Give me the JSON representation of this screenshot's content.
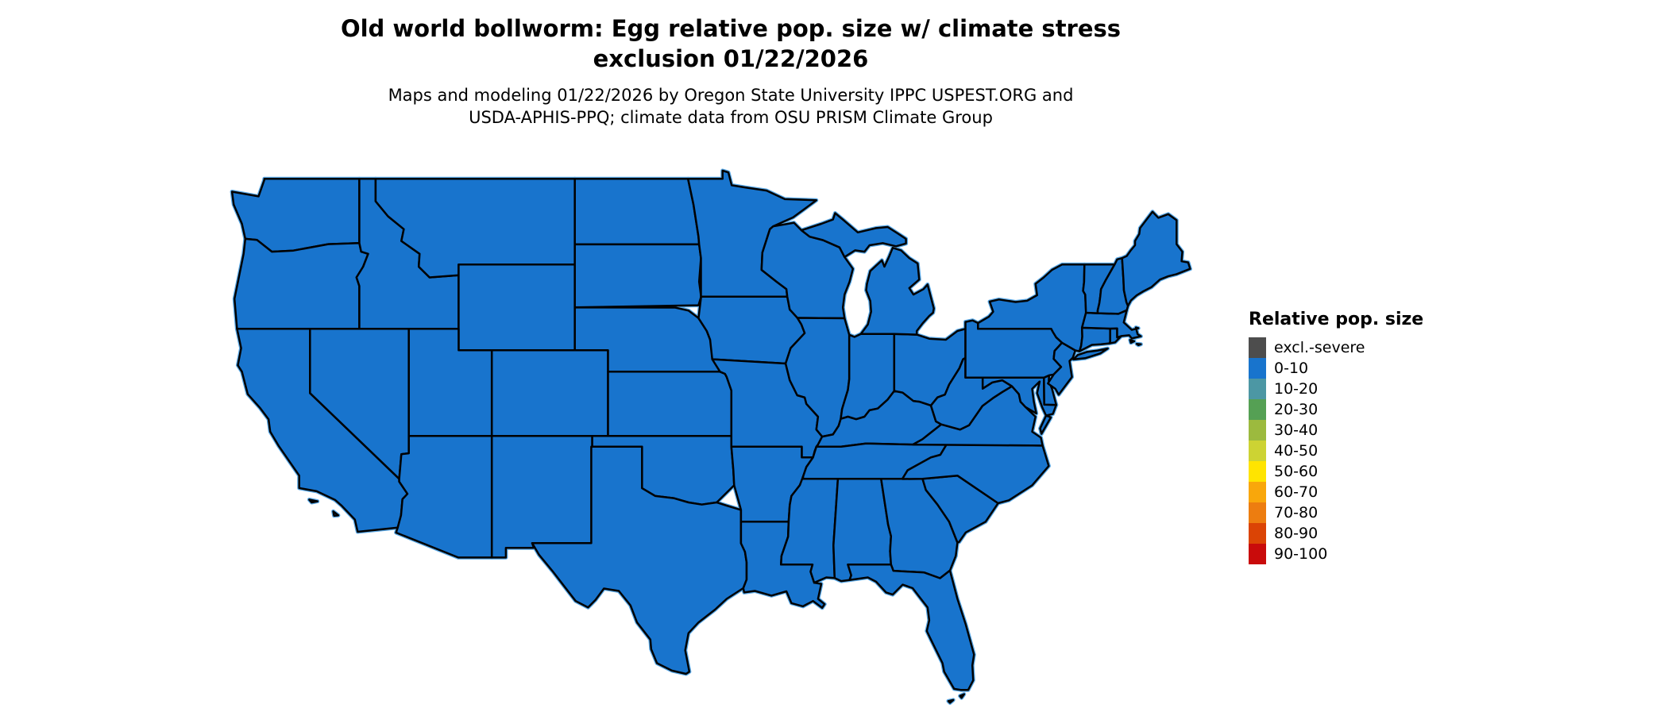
{
  "title": {
    "text": "Old world bollworm: Egg relative pop. size w/ climate stress exclusion 01/22/2026",
    "lines": [
      "Old world bollworm: Egg relative pop. size w/ climate stress",
      "exclusion 01/22/2026"
    ]
  },
  "subtitle": {
    "lines": [
      "Maps and modeling 01/22/2026 by Oregon State University IPPC USPEST.ORG and",
      "USDA-APHIS-PPQ; climate data from OSU PRISM Climate Group"
    ]
  },
  "legend": {
    "title": "Relative pop. size",
    "entries": [
      {
        "label": "excl.-severe",
        "color": "#4D4D4D"
      },
      {
        "label": "0-10",
        "color": "#1874CD"
      },
      {
        "label": "10-20",
        "color": "#4C97A4"
      },
      {
        "label": "20-30",
        "color": "#55A054"
      },
      {
        "label": "30-40",
        "color": "#9CBA3E"
      },
      {
        "label": "40-50",
        "color": "#CDD333"
      },
      {
        "label": "50-60",
        "color": "#FFE400"
      },
      {
        "label": "60-70",
        "color": "#F9A70B"
      },
      {
        "label": "70-80",
        "color": "#ED7D10"
      },
      {
        "label": "80-90",
        "color": "#DB4405"
      },
      {
        "label": "90-100",
        "color": "#C90B0B"
      }
    ]
  },
  "map": {
    "region": "Contiguous United States",
    "depicted_value": "All states shaded in the 0-10 relative population size class",
    "fill_class": "0-10",
    "fill_color": "#1874CD",
    "border_color": "#000000",
    "water_edge_color": "#5AA9E8",
    "background": "#FFFFFF"
  }
}
